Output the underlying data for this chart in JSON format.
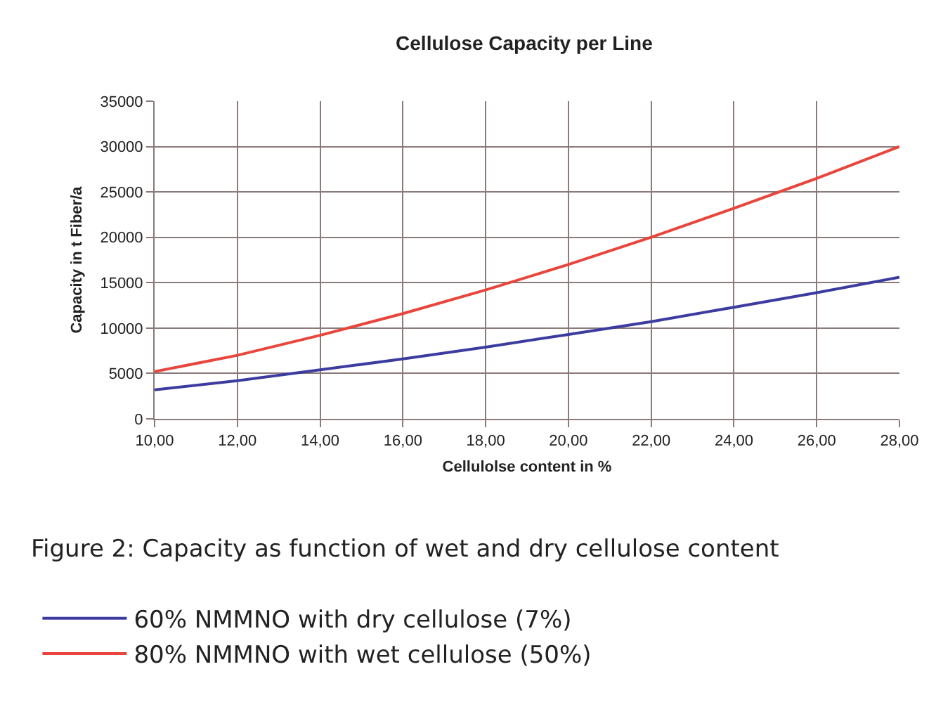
{
  "chart_data": {
    "type": "line",
    "title": "Cellulose Capacity per Line",
    "xlabel": "Cellulolse content in %",
    "ylabel": "Capacity in t Fiber/a",
    "x": [
      10,
      12,
      14,
      16,
      18,
      20,
      22,
      24,
      26,
      28
    ],
    "series": [
      {
        "name": "60% NMMNO with dry cellulose (7%)",
        "color": "#3c3ca0",
        "values": [
          3200,
          4200,
          5400,
          6600,
          7900,
          9300,
          10700,
          12300,
          13900,
          15600
        ]
      },
      {
        "name": "80% NMMNO with wet cellulose (50%)",
        "color": "#e8453c",
        "values": [
          5200,
          7000,
          9200,
          11600,
          14200,
          17000,
          20000,
          23200,
          26500,
          30000
        ]
      }
    ],
    "xlim": [
      10,
      28
    ],
    "xticks": [
      {
        "value": 10,
        "label": "10,00"
      },
      {
        "value": 12,
        "label": "12,00"
      },
      {
        "value": 14,
        "label": "14,00"
      },
      {
        "value": 16,
        "label": "16,00"
      },
      {
        "value": 18,
        "label": "18,00"
      },
      {
        "value": 20,
        "label": "20,00"
      },
      {
        "value": 22,
        "label": "22,00"
      },
      {
        "value": 24,
        "label": "24,00"
      },
      {
        "value": 26,
        "label": "26,00"
      },
      {
        "value": 28,
        "label": "28,00"
      }
    ],
    "ylim": [
      0,
      35000
    ],
    "yticks": [
      0,
      5000,
      10000,
      15000,
      20000,
      25000,
      30000,
      35000
    ],
    "grid": true,
    "legend": "bottom left",
    "marker": "none",
    "line_style": "solid",
    "annotations": [
      "Figure 2: Capacity as function of wet and dry cellulose content"
    ]
  }
}
